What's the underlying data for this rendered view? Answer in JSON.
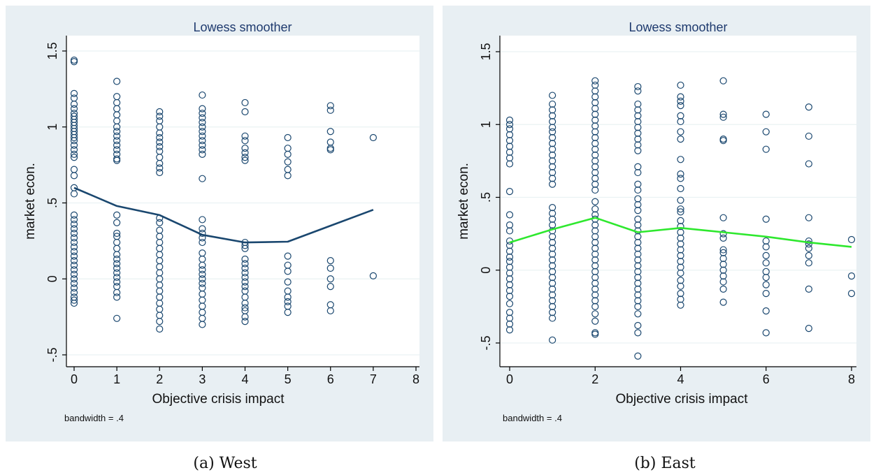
{
  "captions": [
    "(a) West",
    "(b) East"
  ],
  "chart_data": [
    {
      "type": "scatter",
      "title": "Lowess smoother",
      "xlabel": "Objective crisis impact",
      "ylabel": "market econ.",
      "note": "bandwidth = .4",
      "xlim": [
        0,
        8
      ],
      "ylim": [
        -0.5,
        1.5
      ],
      "xticks": [
        0,
        1,
        2,
        3,
        4,
        5,
        6,
        7,
        8
      ],
      "xtick_labels": [
        "0",
        "1",
        "2",
        "3",
        "4",
        "5",
        "6",
        "7",
        "8"
      ],
      "yticks": [
        -0.5,
        0,
        0.5,
        1,
        1.5
      ],
      "ytick_labels": [
        "-.5",
        "0",
        ".5",
        "1",
        "1.5"
      ],
      "grid": true,
      "colors": {
        "points": "#1a476f",
        "line": "#1a476f",
        "grid": "#eaf2f3"
      },
      "scatter": [
        {
          "x": 0,
          "y": [
            1.44,
            1.43,
            1.22,
            1.19,
            1.15,
            1.12,
            1.09,
            1.07,
            1.05,
            1.03,
            1.01,
            0.99,
            0.97,
            0.95,
            0.93,
            0.91,
            0.88,
            0.85,
            0.82,
            0.8,
            0.72,
            0.68,
            0.6,
            0.56,
            0.42,
            0.39,
            0.36,
            0.33,
            0.3,
            0.27,
            0.24,
            0.21,
            0.18,
            0.15,
            0.12,
            0.09,
            0.06,
            0.03,
            0.0,
            -0.03,
            -0.06,
            -0.09,
            -0.12,
            -0.14,
            -0.16
          ]
        },
        {
          "x": 1,
          "y": [
            1.3,
            1.2,
            1.16,
            1.12,
            1.08,
            1.04,
            1.0,
            0.97,
            0.94,
            0.91,
            0.88,
            0.85,
            0.82,
            0.79,
            0.78,
            0.42,
            0.37,
            0.3,
            0.28,
            0.24,
            0.2,
            0.16,
            0.13,
            0.1,
            0.07,
            0.04,
            0.01,
            -0.02,
            -0.05,
            -0.09,
            -0.12,
            -0.26
          ]
        },
        {
          "x": 2,
          "y": [
            1.1,
            1.07,
            1.04,
            1.0,
            0.96,
            0.93,
            0.9,
            0.87,
            0.84,
            0.8,
            0.76,
            0.73,
            0.7,
            0.4,
            0.37,
            0.32,
            0.28,
            0.24,
            0.2,
            0.16,
            0.12,
            0.08,
            0.04,
            0.0,
            -0.04,
            -0.08,
            -0.12,
            -0.16,
            -0.2,
            -0.24,
            -0.28,
            -0.33
          ]
        },
        {
          "x": 3,
          "y": [
            1.21,
            1.12,
            1.09,
            1.06,
            1.03,
            1.0,
            0.97,
            0.94,
            0.91,
            0.88,
            0.85,
            0.82,
            0.66,
            0.39,
            0.33,
            0.3,
            0.27,
            0.24,
            0.17,
            0.13,
            0.09,
            0.06,
            0.03,
            0.0,
            -0.03,
            -0.06,
            -0.1,
            -0.14,
            -0.18,
            -0.22,
            -0.26,
            -0.3
          ]
        },
        {
          "x": 4,
          "y": [
            1.16,
            1.1,
            0.94,
            0.91,
            0.86,
            0.83,
            0.8,
            0.78,
            0.24,
            0.22,
            0.2,
            0.13,
            0.1,
            0.07,
            0.04,
            0.01,
            -0.02,
            -0.05,
            -0.08,
            -0.12,
            -0.16,
            -0.19,
            -0.21,
            -0.25,
            -0.28
          ]
        },
        {
          "x": 5,
          "y": [
            0.93,
            0.86,
            0.82,
            0.77,
            0.72,
            0.68,
            0.15,
            0.09,
            0.05,
            -0.02,
            -0.08,
            -0.12,
            -0.15,
            -0.18,
            -0.22
          ]
        },
        {
          "x": 6,
          "y": [
            1.14,
            1.11,
            0.97,
            0.9,
            0.86,
            0.85,
            0.12,
            0.07,
            0.0,
            -0.05,
            -0.17,
            -0.21
          ]
        },
        {
          "x": 7,
          "y": [
            0.93,
            0.02
          ]
        }
      ],
      "lowess": {
        "x": [
          0,
          1,
          2,
          3,
          4,
          5,
          6,
          7
        ],
        "y": [
          0.6,
          0.48,
          0.42,
          0.29,
          0.24,
          0.245,
          0.35,
          0.455
        ]
      }
    },
    {
      "type": "scatter",
      "title": "Lowess smoother",
      "xlabel": "Objective crisis impact",
      "ylabel": "market econ.",
      "note": "bandwidth = .4",
      "xlim": [
        0,
        8
      ],
      "ylim": [
        -0.5,
        1.5
      ],
      "xticks": [
        0,
        2,
        4,
        6,
        8
      ],
      "xtick_labels": [
        "0",
        "2",
        "4",
        "6",
        "8"
      ],
      "yticks": [
        -0.5,
        0,
        0.5,
        1,
        1.5
      ],
      "ytick_labels": [
        "-.5",
        "0",
        ".5",
        "1",
        "1.5"
      ],
      "grid": true,
      "colors": {
        "points": "#1a476f",
        "line": "#2ee82e",
        "grid": "#eaf2f3"
      },
      "scatter": [
        {
          "x": 0,
          "y": [
            1.03,
            1.0,
            0.97,
            0.93,
            0.89,
            0.85,
            0.81,
            0.77,
            0.73,
            0.54,
            0.38,
            0.31,
            0.27,
            0.2,
            0.17,
            0.13,
            0.09,
            0.06,
            0.02,
            -0.02,
            -0.06,
            -0.1,
            -0.14,
            -0.18,
            -0.23,
            -0.29,
            -0.33,
            -0.37,
            -0.41
          ]
        },
        {
          "x": 1,
          "y": [
            1.2,
            1.14,
            1.1,
            1.06,
            1.02,
            0.98,
            0.95,
            0.91,
            0.87,
            0.83,
            0.79,
            0.75,
            0.71,
            0.67,
            0.63,
            0.59,
            0.43,
            0.39,
            0.35,
            0.31,
            0.27,
            0.23,
            0.19,
            0.15,
            0.11,
            0.07,
            0.03,
            -0.01,
            -0.05,
            -0.09,
            -0.13,
            -0.17,
            -0.21,
            -0.25,
            -0.29,
            -0.33,
            -0.48
          ]
        },
        {
          "x": 2,
          "y": [
            1.3,
            1.27,
            1.23,
            1.19,
            1.15,
            1.11,
            1.07,
            1.03,
            0.99,
            0.95,
            0.91,
            0.87,
            0.83,
            0.79,
            0.75,
            0.71,
            0.67,
            0.63,
            0.59,
            0.55,
            0.47,
            0.42,
            0.38,
            0.35,
            0.31,
            0.27,
            0.23,
            0.19,
            0.15,
            0.11,
            0.07,
            0.03,
            -0.01,
            -0.05,
            -0.09,
            -0.13,
            -0.17,
            -0.21,
            -0.25,
            -0.3,
            -0.35,
            -0.43,
            -0.44
          ]
        },
        {
          "x": 3,
          "y": [
            1.26,
            1.23,
            1.14,
            1.1,
            1.06,
            1.02,
            0.98,
            0.94,
            0.9,
            0.86,
            0.82,
            0.71,
            0.67,
            0.59,
            0.55,
            0.49,
            0.45,
            0.41,
            0.35,
            0.31,
            0.27,
            0.23,
            0.19,
            0.15,
            0.11,
            0.07,
            0.03,
            -0.01,
            -0.05,
            -0.09,
            -0.13,
            -0.17,
            -0.21,
            -0.25,
            -0.3,
            -0.38,
            -0.43,
            -0.59
          ]
        },
        {
          "x": 4,
          "y": [
            1.27,
            1.19,
            1.16,
            1.13,
            1.06,
            1.02,
            0.95,
            0.9,
            0.76,
            0.66,
            0.63,
            0.56,
            0.48,
            0.42,
            0.4,
            0.34,
            0.3,
            0.26,
            0.22,
            0.18,
            0.14,
            0.1,
            0.06,
            0.02,
            -0.02,
            -0.07,
            -0.11,
            -0.16,
            -0.2,
            -0.24
          ]
        },
        {
          "x": 5,
          "y": [
            1.3,
            1.07,
            1.05,
            0.9,
            0.89,
            0.36,
            0.25,
            0.22,
            0.14,
            0.12,
            0.08,
            0.04,
            0.0,
            -0.04,
            -0.08,
            -0.13,
            -0.22
          ]
        },
        {
          "x": 6,
          "y": [
            1.07,
            0.95,
            0.83,
            0.35,
            0.2,
            0.16,
            0.1,
            0.05,
            -0.01,
            -0.05,
            -0.1,
            -0.16,
            -0.28,
            -0.43
          ]
        },
        {
          "x": 7,
          "y": [
            1.12,
            0.92,
            0.73,
            0.36,
            0.2,
            0.18,
            0.15,
            0.1,
            0.05,
            -0.13,
            -0.4
          ]
        },
        {
          "x": 8,
          "y": [
            0.21,
            -0.04,
            -0.16
          ]
        }
      ],
      "lowess": {
        "x": [
          0,
          1,
          2,
          3,
          4,
          5,
          6,
          7,
          8
        ],
        "y": [
          0.19,
          0.28,
          0.36,
          0.26,
          0.29,
          0.26,
          0.23,
          0.19,
          0.16
        ]
      }
    }
  ]
}
